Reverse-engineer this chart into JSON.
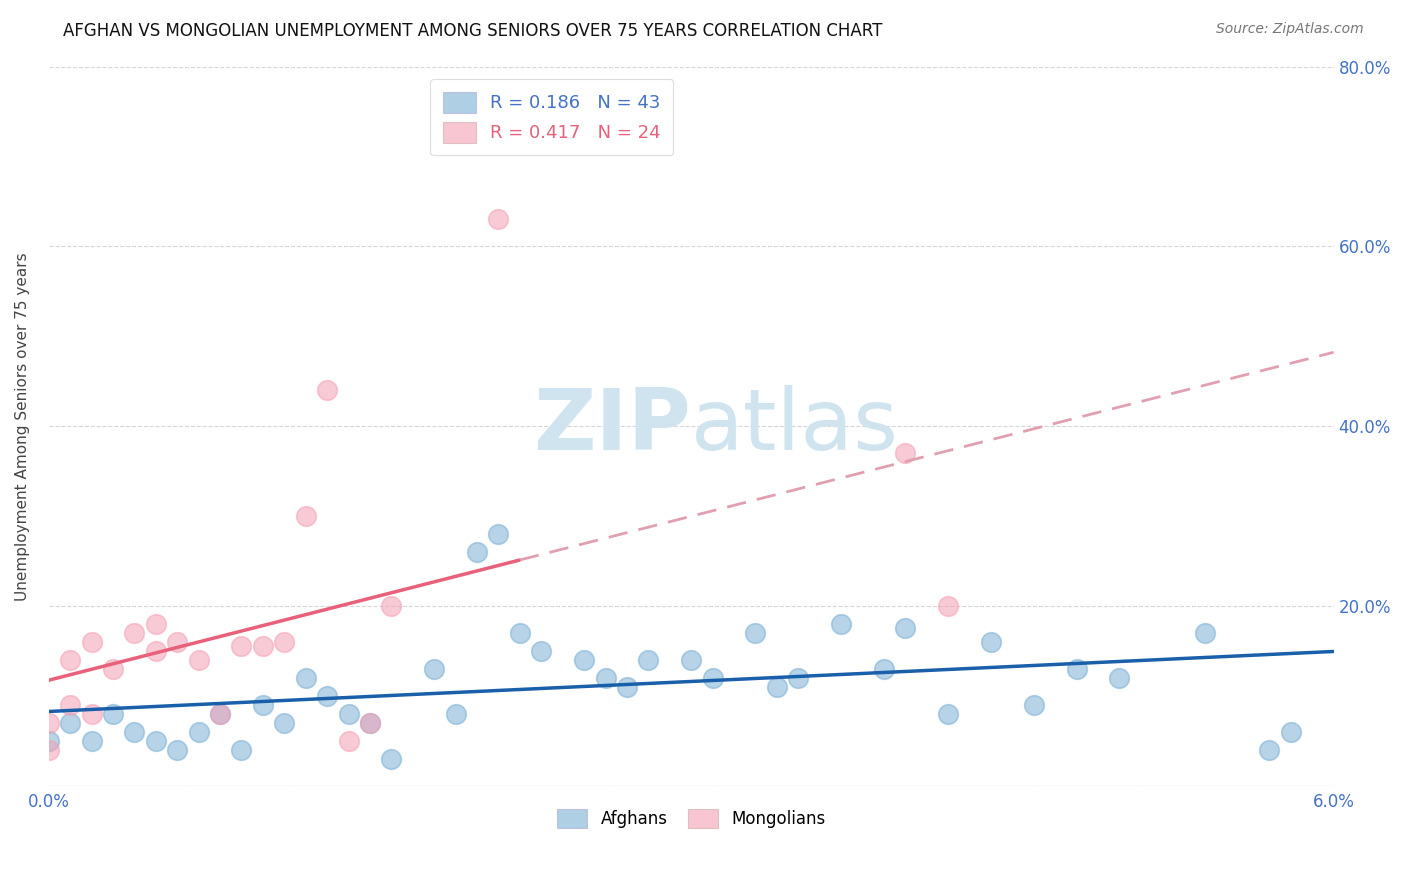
{
  "title": "AFGHAN VS MONGOLIAN UNEMPLOYMENT AMONG SENIORS OVER 75 YEARS CORRELATION CHART",
  "source": "Source: ZipAtlas.com",
  "xlabel_color": "#4472c4",
  "ylabel": "Unemployment Among Seniors over 75 years",
  "xlim": [
    0.0,
    0.06
  ],
  "ylim": [
    0.0,
    0.8
  ],
  "x_ticks": [
    0.0,
    0.01,
    0.02,
    0.03,
    0.04,
    0.05,
    0.06
  ],
  "x_tick_labels": [
    "0.0%",
    "",
    "",
    "",
    "",
    "",
    "6.0%"
  ],
  "y_ticks": [
    0.0,
    0.2,
    0.4,
    0.6,
    0.8
  ],
  "y_tick_labels": [
    "",
    "20.0%",
    "40.0%",
    "60.0%",
    "80.0%"
  ],
  "afghan_color": "#7bafd4",
  "mongolian_color": "#f4a0b5",
  "afghan_R": 0.186,
  "afghan_N": 43,
  "mongolian_R": 0.417,
  "mongolian_N": 24,
  "afghan_x": [
    0.0,
    0.001,
    0.002,
    0.003,
    0.004,
    0.005,
    0.006,
    0.007,
    0.008,
    0.009,
    0.01,
    0.011,
    0.012,
    0.013,
    0.014,
    0.015,
    0.016,
    0.018,
    0.019,
    0.02,
    0.021,
    0.022,
    0.023,
    0.025,
    0.026,
    0.027,
    0.028,
    0.03,
    0.031,
    0.033,
    0.034,
    0.035,
    0.037,
    0.039,
    0.04,
    0.042,
    0.044,
    0.046,
    0.048,
    0.05,
    0.054,
    0.057,
    0.058
  ],
  "afghan_y": [
    0.05,
    0.07,
    0.05,
    0.08,
    0.06,
    0.05,
    0.04,
    0.06,
    0.08,
    0.04,
    0.09,
    0.07,
    0.12,
    0.1,
    0.08,
    0.07,
    0.03,
    0.13,
    0.08,
    0.26,
    0.28,
    0.17,
    0.15,
    0.14,
    0.12,
    0.11,
    0.14,
    0.14,
    0.12,
    0.17,
    0.11,
    0.12,
    0.18,
    0.13,
    0.175,
    0.08,
    0.16,
    0.09,
    0.13,
    0.12,
    0.17,
    0.04,
    0.06
  ],
  "mongolian_x": [
    0.0,
    0.0,
    0.001,
    0.001,
    0.002,
    0.002,
    0.003,
    0.004,
    0.005,
    0.005,
    0.006,
    0.007,
    0.008,
    0.009,
    0.01,
    0.011,
    0.012,
    0.013,
    0.014,
    0.015,
    0.016,
    0.021,
    0.04,
    0.042
  ],
  "mongolian_y": [
    0.04,
    0.07,
    0.09,
    0.14,
    0.08,
    0.16,
    0.13,
    0.17,
    0.15,
    0.18,
    0.16,
    0.14,
    0.08,
    0.155,
    0.155,
    0.16,
    0.3,
    0.44,
    0.05,
    0.07,
    0.2,
    0.63,
    0.37,
    0.2
  ],
  "background_color": "#ffffff",
  "grid_color": "#cccccc",
  "watermark_zip": "ZIP",
  "watermark_atlas": "atlas",
  "watermark_color": "#d0e4f0",
  "right_axis_color": "#4472c4",
  "line_blue": "#1a5faa",
  "line_pink": "#e8607a",
  "line_pink_dash": "#e0a0b0"
}
